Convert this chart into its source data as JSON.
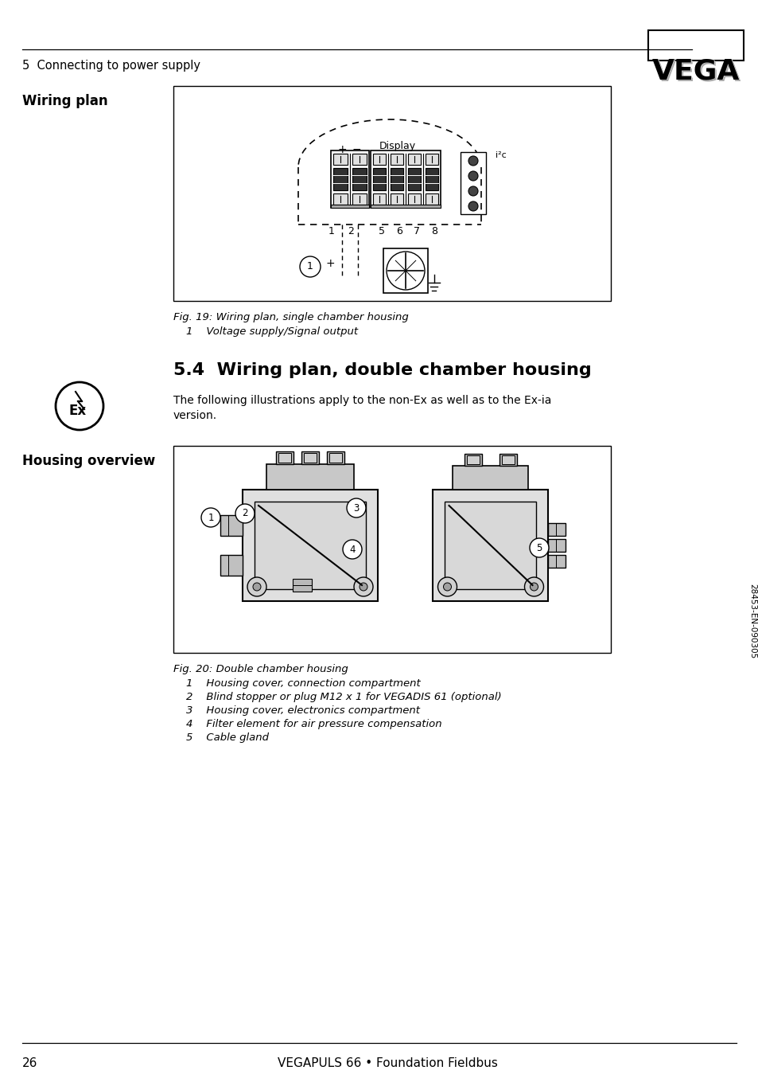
{
  "page_number": "26",
  "footer_text": "VEGAPULS 66 • Foundation Fieldbus",
  "header_section": "5  Connecting to power supply",
  "bg_color": "#ffffff",
  "section_title": "5.4  Wiring plan, double chamber housing",
  "wiring_plan_label": "Wiring plan",
  "housing_overview_label": "Housing overview",
  "fig19_caption": "Fig. 19: Wiring plan, single chamber housing",
  "fig19_note": "1    Voltage supply/Signal output",
  "fig20_caption": "Fig. 20: Double chamber housing",
  "fig20_notes": [
    "1    Housing cover, connection compartment",
    "2    Blind stopper or plug M12 x 1 for VEGADIS 61 (optional)",
    "3    Housing cover, electronics compartment",
    "4    Filter element for air pressure compensation",
    "5    Cable gland"
  ],
  "ex_text": "The following illustrations apply to the non-Ex as well as to the Ex-ia\nversion.",
  "sidebar_text": "28453-EN-090305"
}
